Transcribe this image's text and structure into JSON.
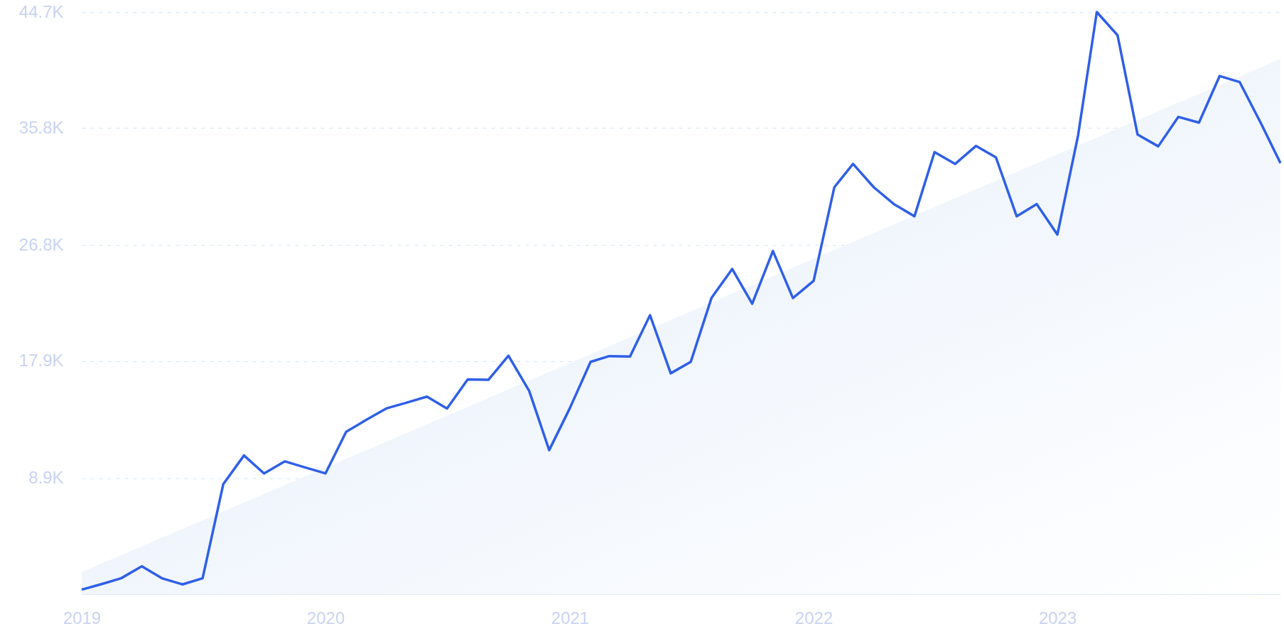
{
  "chart_data": {
    "type": "line",
    "x": [
      "2019-01",
      "2019-02",
      "2019-03",
      "2019-04",
      "2019-05",
      "2019-06",
      "2019-07",
      "2019-08",
      "2019-09",
      "2019-10",
      "2019-11",
      "2019-12",
      "2020-01",
      "2020-02",
      "2020-03",
      "2020-04",
      "2020-05",
      "2020-06",
      "2020-07",
      "2020-08",
      "2020-09",
      "2020-10",
      "2020-11",
      "2020-12",
      "2021-01",
      "2021-02",
      "2021-03",
      "2021-04",
      "2021-05",
      "2021-06",
      "2021-07",
      "2021-08",
      "2021-09",
      "2021-10",
      "2021-11",
      "2021-12",
      "2022-01",
      "2022-02",
      "2022-03",
      "2022-04",
      "2022-05",
      "2022-06",
      "2022-07",
      "2022-08",
      "2022-09",
      "2022-10",
      "2022-11",
      "2022-12",
      "2023-01",
      "2023-02",
      "2023-03",
      "2023-04",
      "2023-05",
      "2023-06",
      "2023-07",
      "2023-08",
      "2023-09",
      "2023-10",
      "2023-11",
      "2023-12"
    ],
    "series": [
      {
        "type": "area",
        "color": "#e3edfb",
        "x": [
          "2019-01",
          "2023-12"
        ],
        "values": [
          1700,
          41100
        ]
      },
      {
        "color": "#2f5fe8",
        "values": [
          350,
          790,
          1220,
          2140,
          1220,
          750,
          1220,
          8450,
          10650,
          9270,
          10200,
          9740,
          9270,
          12470,
          13350,
          14260,
          14700,
          15170,
          14260,
          16490,
          16460,
          18310,
          15610,
          11060,
          14290,
          17840,
          18280,
          18250,
          21420,
          16960,
          17840,
          22740,
          24970,
          22300,
          26350,
          22740,
          24060,
          31250,
          33040,
          31250,
          29960,
          29020,
          33950,
          33040,
          34420,
          33540,
          29020,
          29960,
          27610,
          35240,
          44700,
          42930,
          35300,
          34390,
          36650,
          36210,
          39790,
          39320,
          36240,
          33100
        ]
      }
    ],
    "xlim": [
      "2019-01",
      "2023-12"
    ],
    "xticks": [
      {
        "value": "2019-01",
        "label": "2019"
      },
      {
        "value": "2020-01",
        "label": "2020"
      },
      {
        "value": "2021-01",
        "label": "2021"
      },
      {
        "value": "2022-01",
        "label": "2022"
      },
      {
        "value": "2023-01",
        "label": "2023"
      }
    ],
    "ylim": [
      0,
      44700
    ],
    "yticks": [
      {
        "value": 8900,
        "label": "8.9K"
      },
      {
        "value": 17900,
        "label": "17.9K"
      },
      {
        "value": 26800,
        "label": "26.8K"
      },
      {
        "value": 35800,
        "label": "35.8K"
      },
      {
        "value": 44700,
        "label": "44.7K"
      }
    ],
    "grid": "y",
    "marker": "none",
    "line_style": "solid"
  }
}
